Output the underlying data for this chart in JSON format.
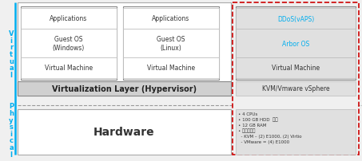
{
  "bg_color": "#f0f0f0",
  "white": "#ffffff",
  "light_gray": "#e0e0e0",
  "mid_gray": "#d0d0d0",
  "dark_gray": "#444444",
  "cyan_text": "#00aeef",
  "red_dashed": "#cc0000",
  "line_color": "#888888",
  "dashed_line_color": "#999999",
  "virtual_label": "V\ni\nr\nt\nu\na\nl",
  "physical_label": "P\nh\ny\ns\ni\nc\na\nl",
  "vm1_rows": [
    "Applications",
    "Guest OS\n(Windows)",
    "Virtual Machine"
  ],
  "vm2_rows": [
    "Applications",
    "Guest OS\n(Linux)",
    "Virtual Machine"
  ],
  "vm3_rows": [
    "DDoS(vAPS)",
    "Arbor OS",
    "Virtual Machine"
  ],
  "vm3_text_colors": [
    "#00aeef",
    "#00aeef",
    "#333333"
  ],
  "virt_layer_text": "Virtualization Layer (Hypervisor)",
  "kvm_text": "KVM/Vmware vSphere",
  "hardware_text": "Hardware",
  "spec_lines": [
    "• 4 CPUs",
    "• 100 GB HDD  공간",
    "• 12 GB RAM",
    "• 인터페이스",
    "  - KVM – (2) E1000, (2) Virtio",
    "  - VMware = (4) E1000"
  ]
}
